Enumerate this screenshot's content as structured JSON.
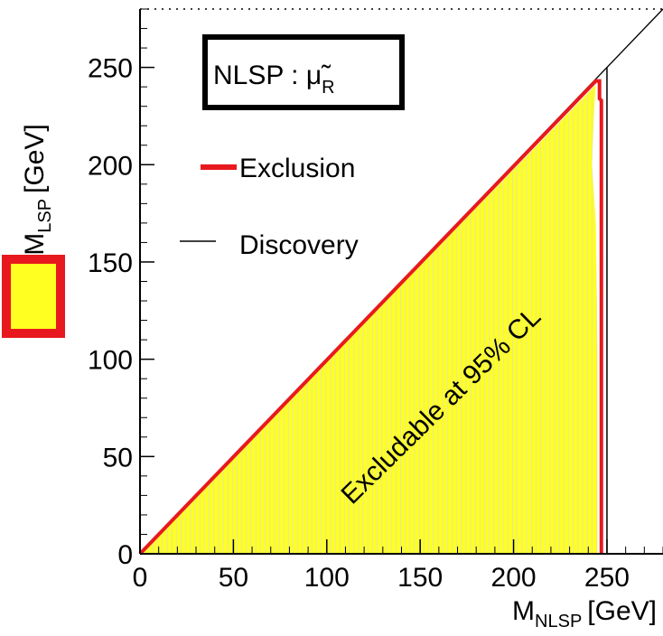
{
  "chart_data": {
    "type": "area",
    "xlabel": "M",
    "xlabel_sub": "NLSP",
    "xlabel_unit": "[GeV]",
    "ylabel": "M",
    "ylabel_sub": "LSP",
    "ylabel_unit": "[GeV]",
    "xlim": [
      0,
      280
    ],
    "ylim": [
      0,
      280
    ],
    "xticks": [
      0,
      50,
      100,
      150,
      200,
      250
    ],
    "yticks": [
      0,
      50,
      100,
      150,
      200,
      250
    ],
    "x_tick_labels": [
      "0",
      "50",
      "100",
      "150",
      "200",
      "250"
    ],
    "y_tick_labels": [
      "0",
      "50",
      "100",
      "150",
      "200",
      "250"
    ],
    "box_label": "NLSP : μ̃",
    "box_label_sub": "R",
    "annotation": "Excludable at 95% CL",
    "legend": [
      {
        "name": "Exclusion",
        "color": "#e8191e"
      },
      {
        "name": "Discovery",
        "color": "#000000"
      }
    ],
    "kinematic_line": {
      "x": [
        0,
        280
      ],
      "y": [
        0,
        280
      ],
      "color": "#000000"
    },
    "discovery_boundary": {
      "x": [
        250,
        250
      ],
      "y": [
        0,
        250
      ],
      "color": "#000000"
    },
    "series": [
      {
        "name": "Exclusion",
        "color": "#e8191e",
        "x": [
          0,
          244,
          246,
          246,
          247,
          247
        ],
        "y": [
          0,
          243,
          243,
          234,
          233,
          0
        ]
      }
    ],
    "fill_color": "#ffff22",
    "fill_region": {
      "x": [
        0,
        244,
        243,
        242,
        244,
        245,
        245
      ],
      "y": [
        0,
        241,
        225,
        200,
        170,
        100,
        0
      ]
    },
    "grid": false,
    "legend_placement": "top-left inside"
  },
  "left_marker": {
    "fill": "#ffff22",
    "stroke": "#e8191e"
  }
}
